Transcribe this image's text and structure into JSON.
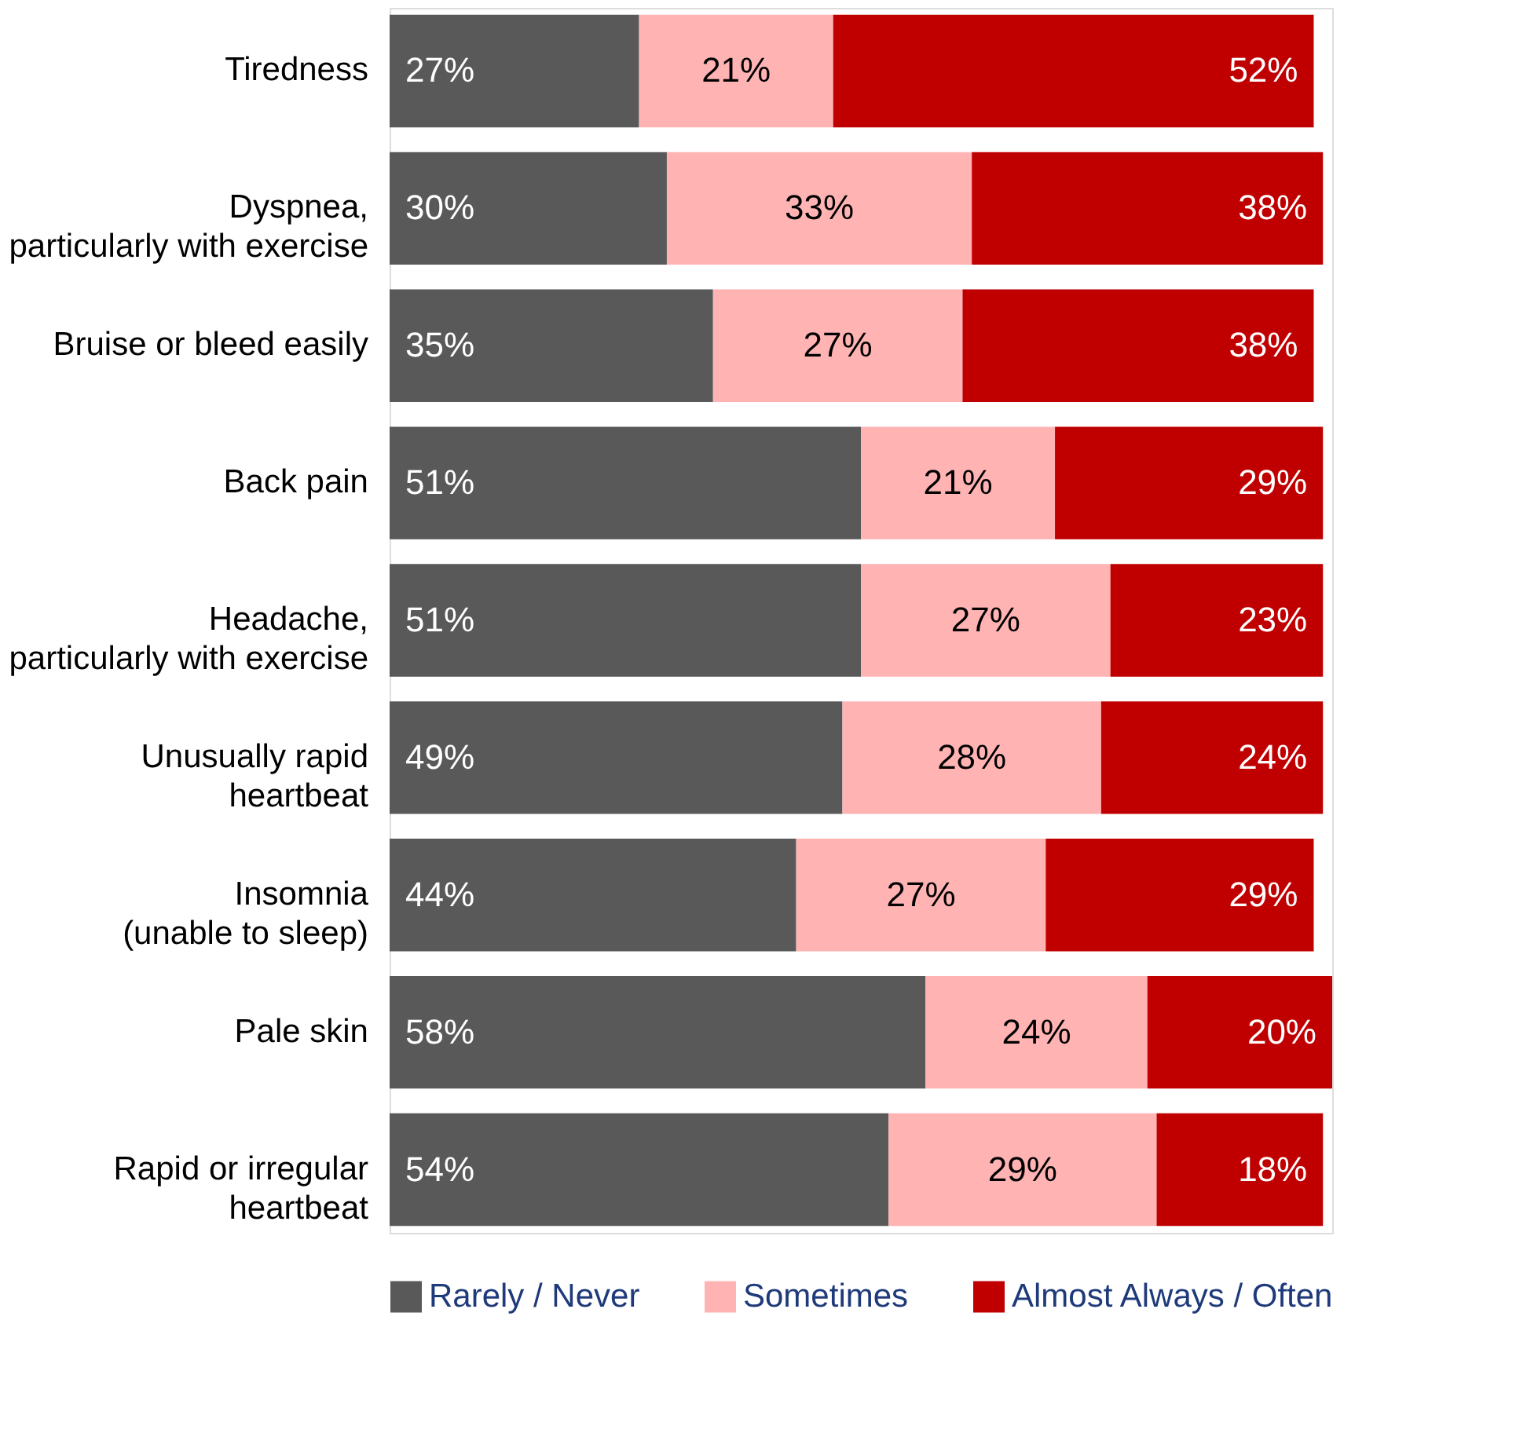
{
  "chart_data": {
    "type": "bar",
    "orientation": "horizontal",
    "stacked": true,
    "legend": "bottom",
    "categories": [
      "Tiredness",
      "Dyspnea,\nparticularly with exercise",
      "Bruise or bleed easily",
      "Back pain",
      "Headache,\nparticularly with exercise",
      "Unusually rapid\nheartbeat",
      "Insomnia\n(unable to sleep)",
      "Pale skin",
      "Rapid or irregular\nheartbeat"
    ],
    "series": [
      {
        "name": "Rarely / Never",
        "color": "#595959",
        "values": [
          27,
          30,
          35,
          51,
          51,
          49,
          44,
          58,
          54
        ],
        "value_labels": [
          "27%",
          "30%",
          "35%",
          "51%",
          "51%",
          "49%",
          "44%",
          "58%",
          "54%"
        ]
      },
      {
        "name": "Sometimes",
        "color": "#ffb3b3",
        "values": [
          21,
          33,
          27,
          21,
          27,
          28,
          27,
          24,
          29
        ],
        "value_labels": [
          "21%",
          "33%",
          "27%",
          "21%",
          "27%",
          "28%",
          "27%",
          "24%",
          "29%"
        ]
      },
      {
        "name": "Almost Always / Often",
        "color": "#c00000",
        "values": [
          52,
          38,
          38,
          29,
          23,
          24,
          29,
          20,
          18
        ],
        "value_labels": [
          "52%",
          "38%",
          "38%",
          "29%",
          "23%",
          "24%",
          "29%",
          "20%",
          "18%"
        ]
      }
    ]
  }
}
